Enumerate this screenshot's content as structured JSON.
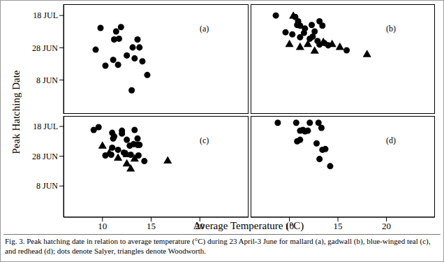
{
  "xlabel": "Average Temperature (°C)",
  "ylabel": "Peak Hatching Date",
  "caption": "Fig. 3. Peak hatching date in relation to average temperature (°C) during 23 April-3 June for mallard (a), gadwall (b), blue-winged teal (c), and redhead (d); dots denote Salyer, triangles denote Woodworth.",
  "chart_data": [
    {
      "type": "scatter",
      "title": "(a)",
      "xlim": [
        6,
        25
      ],
      "xticks": [
        10,
        15,
        20
      ],
      "ylim": [
        138,
        206
      ],
      "yticks": [
        {
          "value": 159,
          "label": "8 JUN"
        },
        {
          "value": 179,
          "label": "28 JUN"
        },
        {
          "value": 199,
          "label": "18 JUL"
        }
      ],
      "tick_labels": "y",
      "series": [
        {
          "marker": "circle",
          "color": "#000000",
          "x": [
            9.8,
            9.3,
            10.3,
            11.2,
            11.7,
            11.9,
            11.4,
            11.1,
            11.6,
            12.5,
            13.3,
            13.1,
            13.6,
            13.8,
            14.1,
            14.6,
            13.0
          ],
          "values": [
            191.3,
            177.8,
            167.9,
            184.1,
            184.6,
            191.8,
            189.1,
            171.5,
            168.4,
            174.2,
            172.4,
            179.2,
            184.1,
            179.2,
            170.6,
            162.1,
            152.6
          ]
        }
      ]
    },
    {
      "type": "scatter",
      "title": "(b)",
      "xlim": [
        6,
        25
      ],
      "xticks": [
        10,
        15,
        20
      ],
      "ylim": [
        138,
        206
      ],
      "yticks": [
        {
          "value": 159,
          "label": "8 JUN"
        },
        {
          "value": 179,
          "label": "28 JUN"
        },
        {
          "value": 199,
          "label": "18 JUL"
        }
      ],
      "tick_labels": false,
      "series": [
        {
          "marker": "circle",
          "color": "#000000",
          "x": [
            8.6,
            10.6,
            10.9,
            10.8,
            11.1,
            11.6,
            12.3,
            13.1,
            13.4,
            12.6,
            11.5,
            10.3,
            9.6,
            12.1,
            12.4,
            12.9,
            13.6,
            13.1,
            14.0,
            11.1,
            15.9
          ],
          "values": [
            199,
            198.1,
            195.4,
            193.1,
            192.7,
            190.9,
            193.1,
            195.4,
            192.7,
            189.1,
            188.2,
            187.3,
            188.6,
            184.6,
            185.9,
            183.2,
            181.9,
            181,
            180.5,
            185.5,
            177.4
          ]
        },
        {
          "marker": "triangle",
          "color": "#000000",
          "x": [
            10.4,
            10.0,
            11.1,
            11.9,
            12.6,
            13.5,
            14.4,
            15.2,
            18.0
          ],
          "values": [
            198.5,
            181,
            179.2,
            181,
            176.9,
            182.3,
            181,
            179.2,
            174.7
          ]
        }
      ]
    },
    {
      "type": "scatter",
      "title": "(c)",
      "xlim": [
        6,
        25
      ],
      "xticks": [
        10,
        15,
        20
      ],
      "ylim": [
        138,
        206
      ],
      "yticks": [
        {
          "value": 159,
          "label": "8 JUN"
        },
        {
          "value": 179,
          "label": "28 JUN"
        },
        {
          "value": 199,
          "label": "18 JUL"
        }
      ],
      "series": [
        {
          "marker": "circle",
          "color": "#000000",
          "x": [
            9.1,
            9.6,
            11.0,
            11.2,
            11.1,
            12.0,
            12.0,
            12.5,
            13.3,
            13.6,
            13.6,
            11.0,
            11.6,
            12.8,
            13.2,
            13.8,
            13.7,
            14.3,
            10.3,
            10.9,
            12.2,
            12.9
          ],
          "values": [
            196.6,
            198.5,
            194.7,
            192.3,
            190.9,
            196.1,
            194.2,
            190,
            196.6,
            190.9,
            186.6,
            184.7,
            183.3,
            186.1,
            187.1,
            186.6,
            179.5,
            175.7,
            179.5,
            180,
            181.4,
            180
          ]
        },
        {
          "marker": "triangle",
          "color": "#000000",
          "x": [
            10.0,
            10.7,
            11.6,
            12.5,
            13.3,
            12.9,
            16.7,
            12.5
          ],
          "values": [
            185.7,
            180.9,
            177.6,
            173.8,
            177.1,
            170.4,
            175.7,
            180
          ]
        }
      ]
    },
    {
      "type": "scatter",
      "title": "(d)",
      "xlim": [
        6,
        25
      ],
      "xticks": [
        10,
        15,
        20
      ],
      "ylim": [
        138,
        206
      ],
      "yticks": [
        {
          "value": 159,
          "label": "8 JUN"
        },
        {
          "value": 179,
          "label": "28 JUN"
        },
        {
          "value": 199,
          "label": "18 JUL"
        }
      ],
      "tick_labels": "x",
      "series": [
        {
          "marker": "circle",
          "color": "#000000",
          "x": [
            8.8,
            10.7,
            11.1,
            11.4,
            11.6,
            11.9,
            10.8,
            11.1,
            12.1,
            13.0,
            13.3,
            12.8,
            13.4,
            13.7,
            13.1,
            14.2
          ],
          "values": [
            201.4,
            201.4,
            196.1,
            196.6,
            195.7,
            196.1,
            189,
            190,
            201.4,
            201.4,
            198,
            187.6,
            183.3,
            183.8,
            177.1,
            172.3
          ]
        }
      ]
    }
  ]
}
